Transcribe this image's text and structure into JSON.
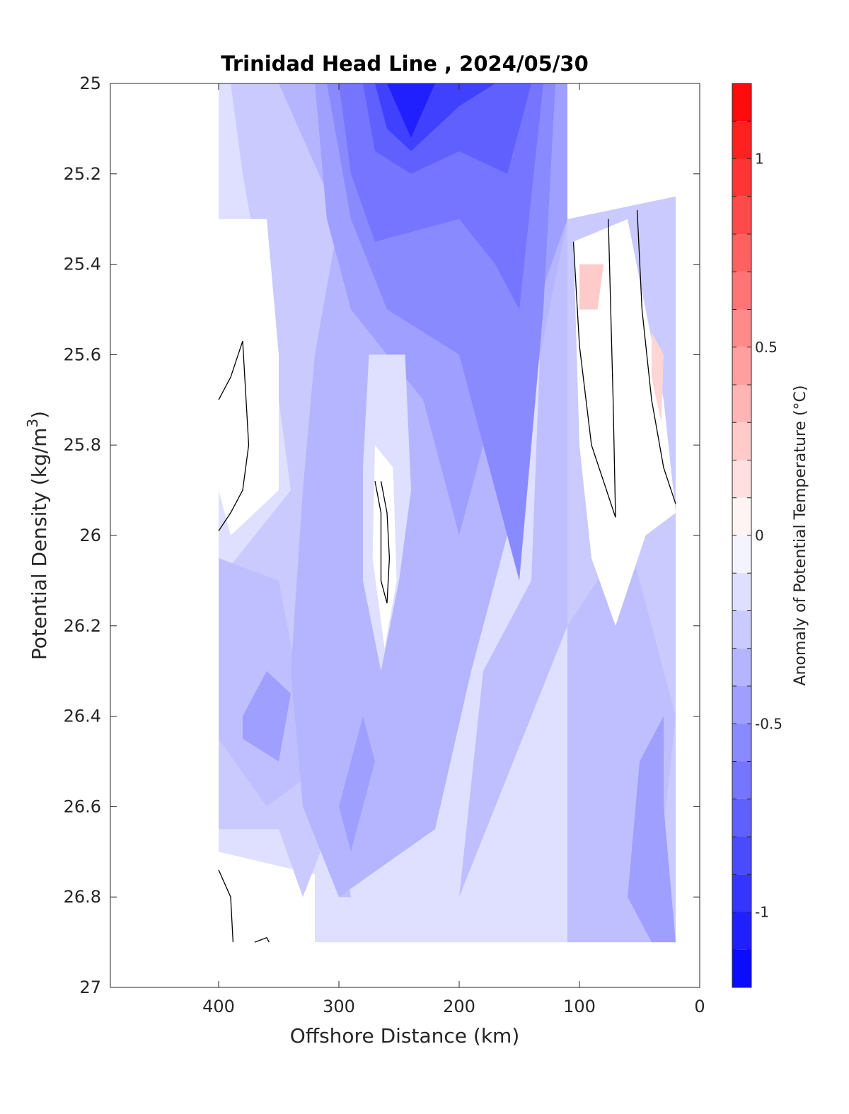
{
  "chart_data": {
    "type": "contourf",
    "title": "Trinidad Head Line , 2024/05/30",
    "xlabel": "Offshore Distance (km)",
    "ylabel_main": "Potential Density (kg/m",
    "ylabel_sup": "3",
    "ylabel_close": ")",
    "xlim": [
      490,
      0
    ],
    "ylim": [
      25,
      27
    ],
    "y_reversed": true,
    "x_ticks": [
      400,
      300,
      200,
      100,
      0
    ],
    "x_tick_labels": [
      "400",
      "300",
      "200",
      "100",
      "0"
    ],
    "y_ticks": [
      25,
      25.2,
      25.4,
      25.6,
      25.8,
      26,
      26.2,
      26.4,
      26.6,
      26.8,
      27
    ],
    "y_tick_labels": [
      "25",
      "25.2",
      "25.4",
      "25.6",
      "25.8",
      "26",
      "26.2",
      "26.4",
      "26.6",
      "26.8",
      "27"
    ],
    "colorbar": {
      "title": "Anomaly of Potential Temperature (°C)",
      "range": [
        -1.2,
        1.2
      ],
      "level_step": 0.1,
      "ticks": [
        1,
        0.5,
        0,
        -0.5,
        -1
      ],
      "tick_labels": [
        "1",
        "0.5",
        "0",
        "-0.5",
        "-1"
      ],
      "colormap": "blue-white-red",
      "neg_color": "#0000ff",
      "pos_color": "#ff0000",
      "mid_color": "#ffffff"
    },
    "anomaly_field_note_fields": [
      "distance_km",
      "density"
    ],
    "columns": [
      {
        "distance_km": 400,
        "density_range": [
          25,
          26.9
        ]
      },
      {
        "distance_km": 300,
        "density_range": [
          25,
          26.9
        ]
      },
      {
        "distance_km": 200,
        "density_range": [
          25,
          26.8
        ]
      },
      {
        "distance_km": 110,
        "density_range": [
          25,
          26.9
        ]
      },
      {
        "distance_km": 20,
        "density_range": [
          25.2,
          26.9
        ]
      }
    ],
    "field_samples": [
      {
        "x": 400,
        "values": [
          -0.2,
          -0.1,
          0,
          0,
          0,
          0,
          -0.2,
          -0.3,
          -0.4,
          -0.2,
          0
        ]
      },
      {
        "x": 350,
        "values": [
          -0.3,
          -0.2,
          -0.1,
          -0.1,
          -0.1,
          -0.2,
          -0.3,
          -0.4,
          -0.4,
          -0.2,
          0
        ]
      },
      {
        "x": 300,
        "values": [
          -0.6,
          -0.5,
          -0.4,
          -0.3,
          -0.3,
          -0.3,
          -0.3,
          -0.4,
          -0.5,
          -0.4,
          -0.3
        ]
      },
      {
        "x": 250,
        "values": [
          -1.1,
          -0.9,
          -0.7,
          -0.5,
          -0.2,
          0.1,
          0,
          -0.3,
          -0.4,
          -0.3,
          null
        ]
      },
      {
        "x": 200,
        "values": [
          -0.8,
          -0.7,
          -0.6,
          -0.5,
          -0.4,
          -0.3,
          -0.3,
          -0.2,
          -0.2,
          -0.2,
          null
        ]
      },
      {
        "x": 150,
        "values": [
          -0.8,
          -0.7,
          -0.7,
          -0.6,
          -0.5,
          -0.5,
          -0.4,
          -0.3,
          -0.3,
          -0.3,
          null
        ]
      },
      {
        "x": 100,
        "values": [
          null,
          null,
          0.2,
          0,
          -0.1,
          -0.2,
          -0.3,
          -0.4,
          -0.4,
          -0.4,
          -0.4
        ]
      },
      {
        "x": 50,
        "values": [
          null,
          0,
          0,
          0.1,
          0,
          -0.1,
          -0.3,
          -0.4,
          -0.4,
          -0.4,
          -0.4
        ]
      },
      {
        "x": 20,
        "values": [
          null,
          null,
          0,
          0.2,
          0,
          -0.1,
          -0.3,
          -0.5,
          -0.5,
          -0.5,
          -0.5
        ]
      }
    ],
    "zero_contours_present": true
  }
}
